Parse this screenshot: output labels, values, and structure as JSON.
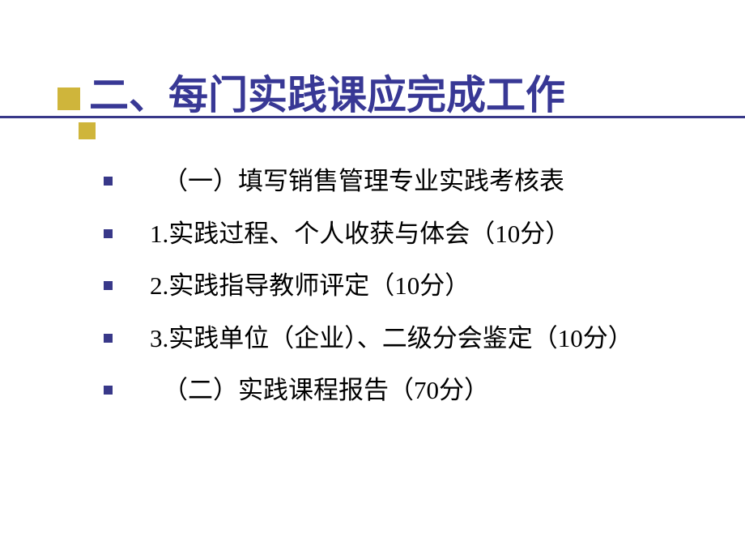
{
  "slide": {
    "title": "二、每门实践课应完成工作",
    "title_color": "#383895",
    "title_fontsize": 49,
    "underline_color": "#383889",
    "accent_color": "#cfb53b",
    "bullet_color": "#383889",
    "text_color": "#000000",
    "body_fontsize": 31,
    "background_color": "#ffffff",
    "bullets": [
      {
        "text": "（一）填写销售管理专业实践考核表",
        "indent": true
      },
      {
        "text": "1.实践过程、个人收获与体会（10分）",
        "indent": false
      },
      {
        "text": "2.实践指导教师评定（10分）",
        "indent": false
      },
      {
        "text": "3.实践单位（企业）、二级分会鉴定（10分）",
        "indent": false
      },
      {
        "text": "（二）实践课程报告（70分）",
        "indent": true
      }
    ]
  }
}
